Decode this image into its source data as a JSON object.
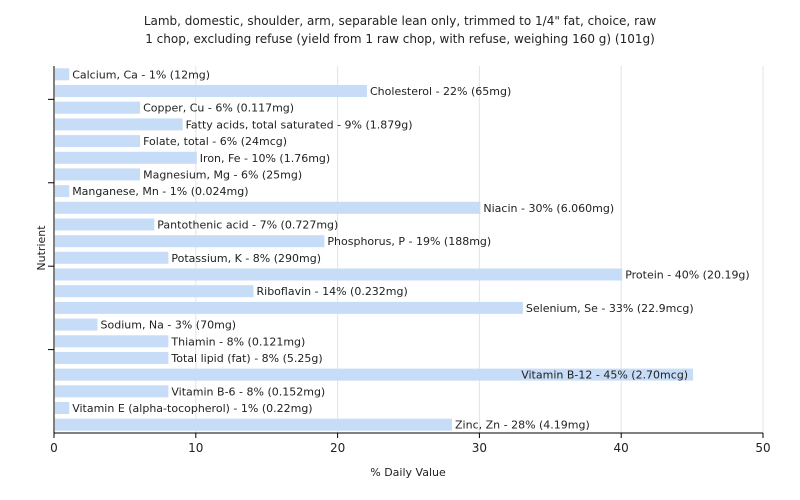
{
  "chart_data": {
    "type": "bar",
    "orientation": "horizontal",
    "title_line1": "Lamb, domestic, shoulder, arm, separable lean only, trimmed to 1/4\" fat, choice, raw",
    "title_line2": "1 chop, excluding refuse (yield from 1 raw chop, with refuse, weighing 160 g) (101g)",
    "xlabel": "% Daily Value",
    "ylabel": "Nutrient",
    "xlim": [
      0,
      50
    ],
    "xticks": [
      0,
      10,
      20,
      30,
      40,
      50
    ],
    "grid": true,
    "bar_color": "#c6dcf7",
    "categories": [
      "Calcium, Ca",
      "Cholesterol",
      "Copper, Cu",
      "Fatty acids, total saturated",
      "Folate, total",
      "Iron, Fe",
      "Magnesium, Mg",
      "Manganese, Mn",
      "Niacin",
      "Pantothenic acid",
      "Phosphorus, P",
      "Potassium, K",
      "Protein",
      "Riboflavin",
      "Selenium, Se",
      "Sodium, Na",
      "Thiamin",
      "Total lipid (fat)",
      "Vitamin B-12",
      "Vitamin B-6",
      "Vitamin E (alpha-tocopherol)",
      "Zinc, Zn"
    ],
    "values": [
      1,
      22,
      6,
      9,
      6,
      10,
      6,
      1,
      30,
      7,
      19,
      8,
      40,
      14,
      33,
      3,
      8,
      8,
      45,
      8,
      1,
      28
    ],
    "labels": [
      "Calcium, Ca - 1% (12mg)",
      "Cholesterol - 22% (65mg)",
      "Copper, Cu - 6% (0.117mg)",
      "Fatty acids, total saturated - 9% (1.879g)",
      "Folate, total - 6% (24mcg)",
      "Iron, Fe - 10% (1.76mg)",
      "Magnesium, Mg - 6% (25mg)",
      "Manganese, Mn - 1% (0.024mg)",
      "Niacin - 30% (6.060mg)",
      "Pantothenic acid - 7% (0.727mg)",
      "Phosphorus, P - 19% (188mg)",
      "Potassium, K - 8% (290mg)",
      "Protein - 40% (20.19g)",
      "Riboflavin - 14% (0.232mg)",
      "Selenium, Se - 33% (22.9mcg)",
      "Sodium, Na - 3% (70mg)",
      "Thiamin - 8% (0.121mg)",
      "Total lipid (fat) - 8% (5.25g)",
      "Vitamin B-12 - 45% (2.70mcg)",
      "Vitamin B-6 - 8% (0.152mg)",
      "Vitamin E (alpha-tocopherol) - 1% (0.22mg)",
      "Zinc, Zn - 28% (4.19mg)"
    ]
  }
}
